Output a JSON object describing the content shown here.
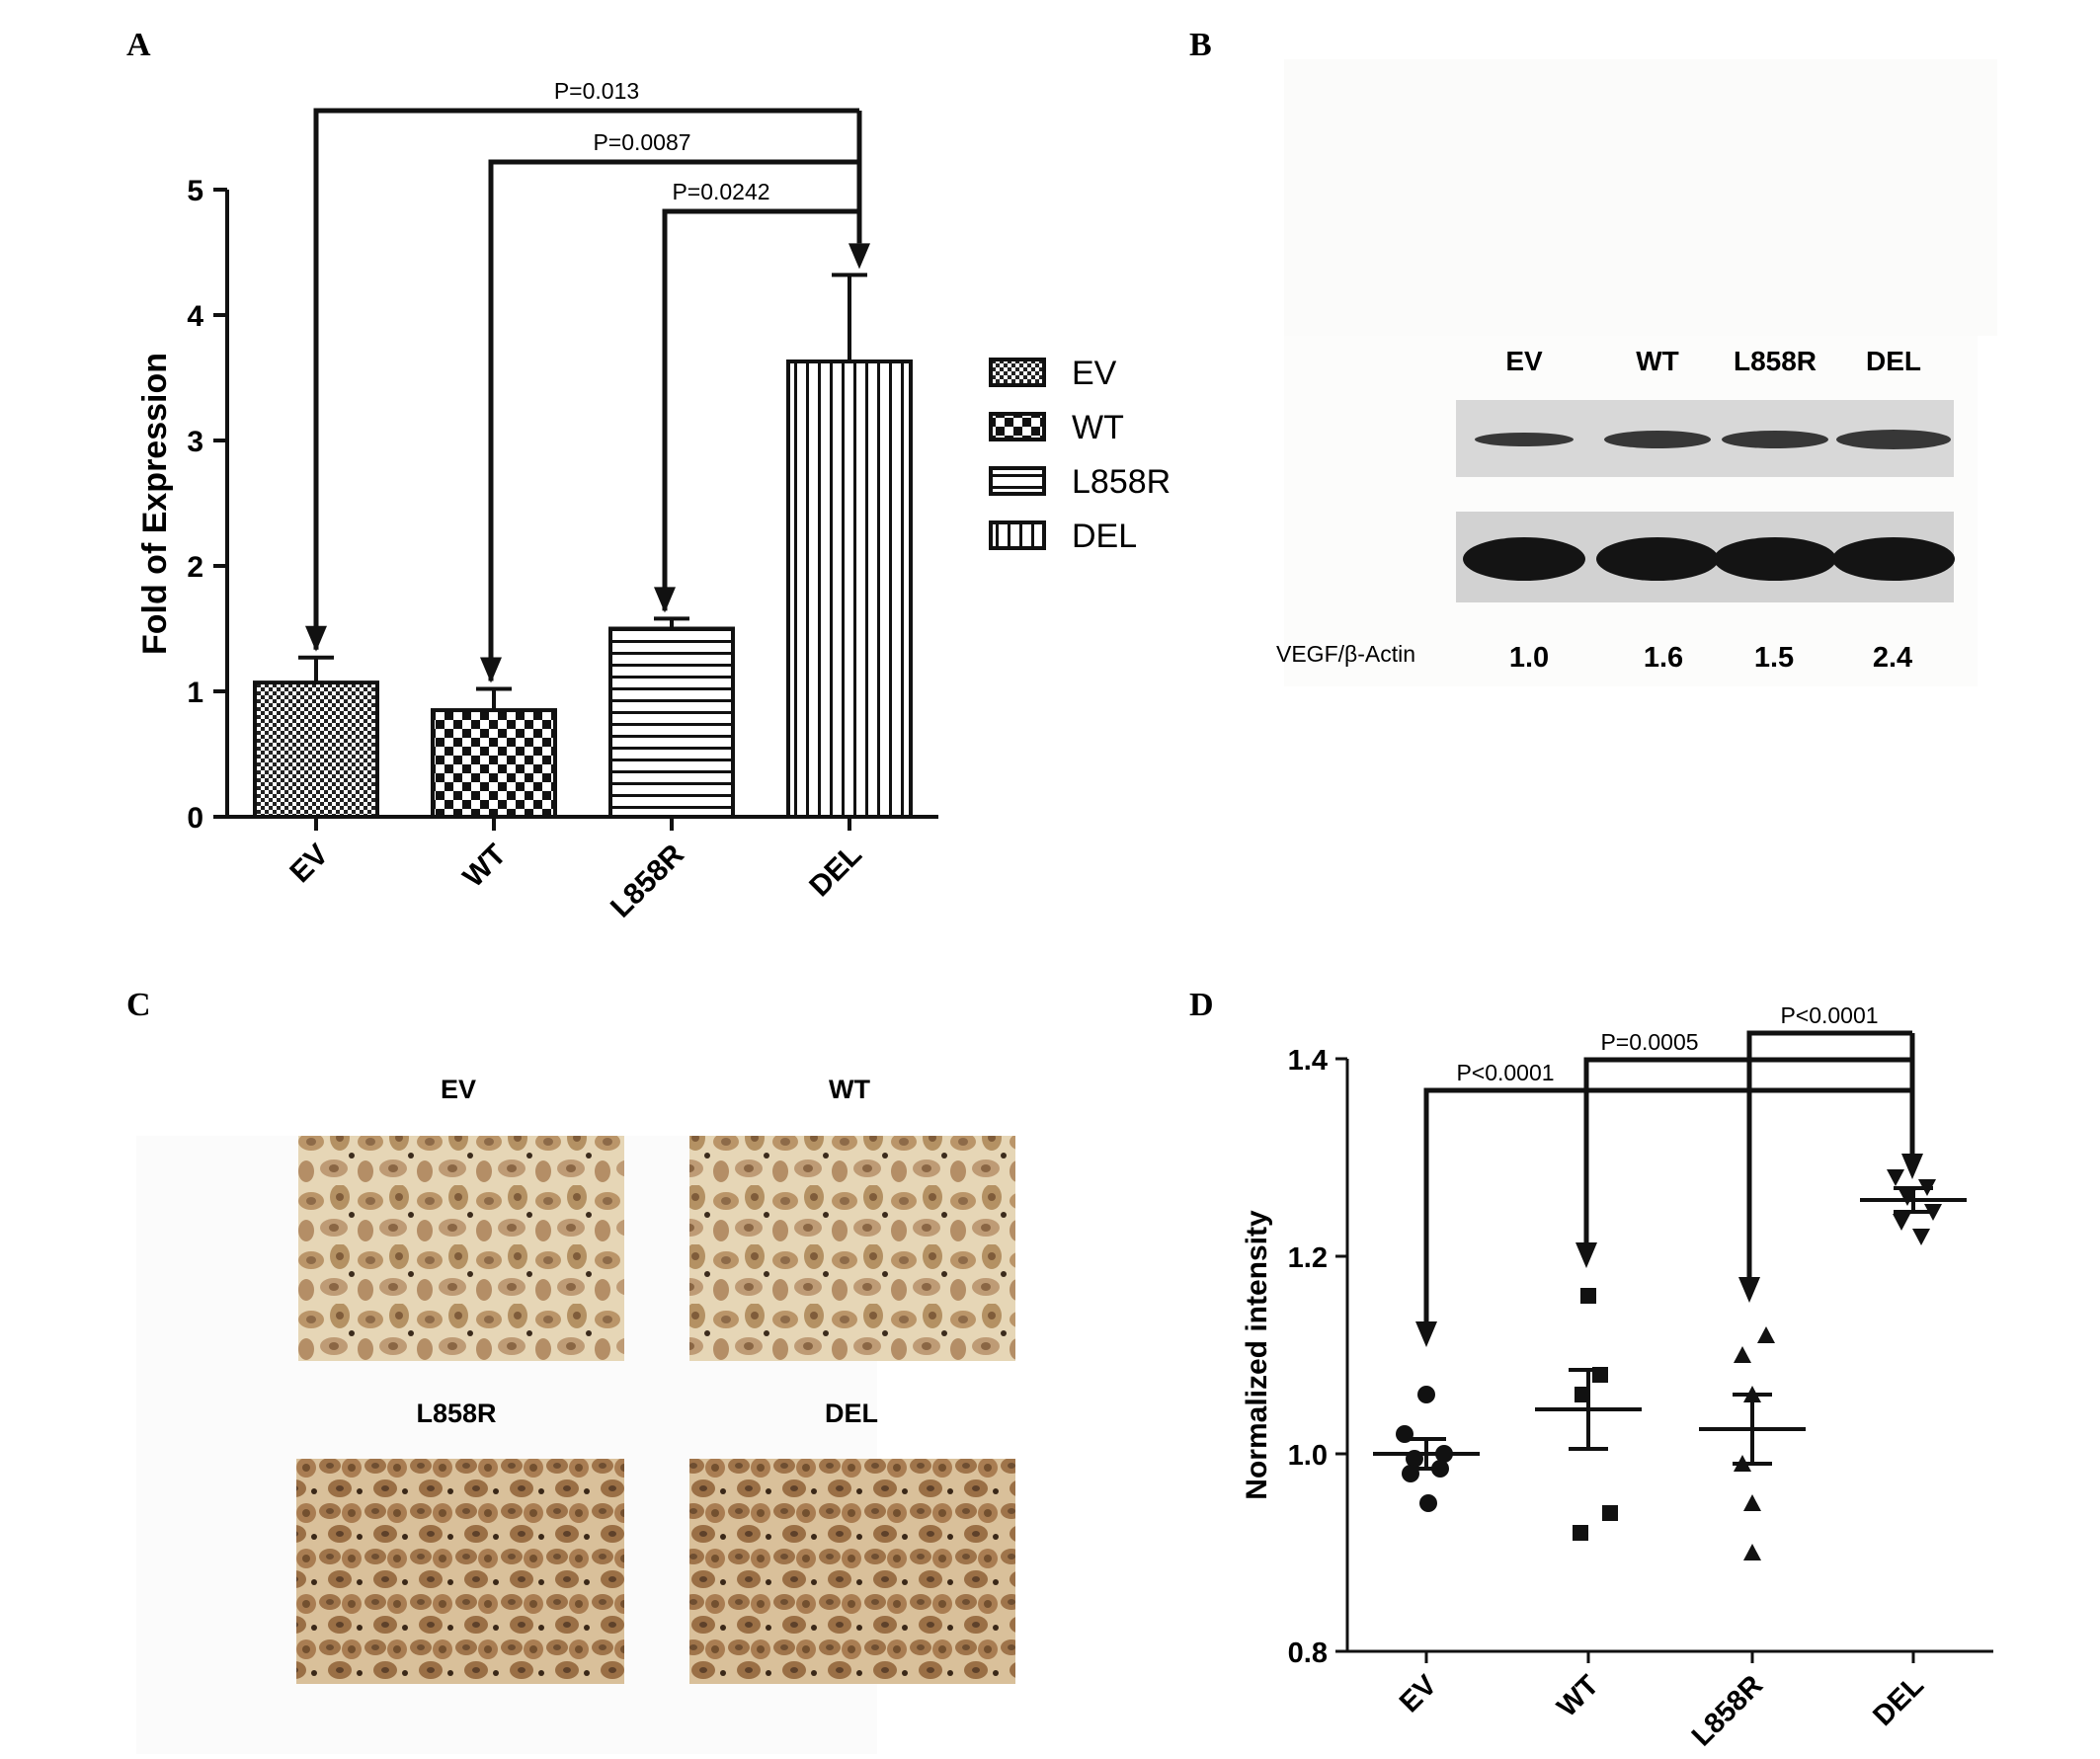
{
  "panels": {
    "a": {
      "letter": "A"
    },
    "b": {
      "letter": "B"
    },
    "c": {
      "letter": "C"
    },
    "d": {
      "letter": "D"
    }
  },
  "chart_data": [
    {
      "panel": "A",
      "type": "bar",
      "categories": [
        "EV",
        "WT",
        "L858R",
        "DEL"
      ],
      "values": [
        1.07,
        0.85,
        1.5,
        3.63
      ],
      "errors": [
        0.2,
        0.17,
        0.08,
        0.69
      ],
      "patterns": [
        "fine-check",
        "check",
        "hlines",
        "vlines"
      ],
      "ylabel": "Fold of Expression",
      "ylim": [
        0,
        5
      ],
      "yticks": [
        "0",
        "1",
        "2",
        "3",
        "4",
        "5"
      ],
      "legend": [
        "EV",
        "WT",
        "L858R",
        "DEL"
      ],
      "legend_position": "right",
      "comparisons": [
        {
          "from": "EV",
          "to": "DEL",
          "label": "P=0.013"
        },
        {
          "from": "WT",
          "to": "DEL",
          "label": "P=0.0087"
        },
        {
          "from": "L858R",
          "to": "DEL",
          "label": "P=0.0242"
        }
      ]
    },
    {
      "panel": "D",
      "type": "scatter",
      "categories": [
        "EV",
        "WT",
        "L858R",
        "DEL"
      ],
      "series": [
        {
          "category": "EV",
          "marker": "circle",
          "points": [
            1.06,
            1.02,
            1.0,
            0.995,
            0.985,
            0.98,
            0.95
          ],
          "mean": 1.0,
          "sem": 0.015
        },
        {
          "category": "WT",
          "marker": "square",
          "points": [
            1.16,
            1.08,
            1.06,
            0.94,
            0.92
          ],
          "mean": 1.045,
          "sem": 0.04
        },
        {
          "category": "L858R",
          "marker": "triangle-up",
          "points": [
            1.12,
            1.1,
            1.06,
            0.99,
            0.95,
            0.9
          ],
          "mean": 1.025,
          "sem": 0.035
        },
        {
          "category": "DEL",
          "marker": "triangle-down",
          "points": [
            1.28,
            1.27,
            1.26,
            1.245,
            1.235,
            1.22
          ],
          "mean": 1.257,
          "sem": 0.012
        }
      ],
      "ylabel": "Normalized intensity",
      "ylim": [
        0.8,
        1.4
      ],
      "yticks": [
        "0.8",
        "1.0",
        "1.2",
        "1.4"
      ],
      "comparisons": [
        {
          "from": "EV",
          "to": "DEL",
          "label": "P<0.0001"
        },
        {
          "from": "WT",
          "to": "DEL",
          "label": "P=0.0005"
        },
        {
          "from": "L858R",
          "to": "DEL",
          "label": "P<0.0001"
        }
      ]
    }
  ],
  "western_blot": {
    "lanes": [
      "EV",
      "WT",
      "L858R",
      "DEL"
    ],
    "ratio_label": "VEGF/β-Actin",
    "ratios": [
      "1.0",
      "1.6",
      "1.5",
      "2.4"
    ]
  },
  "micrographs": {
    "labels": [
      "EV",
      "WT",
      "L858R",
      "DEL"
    ]
  }
}
